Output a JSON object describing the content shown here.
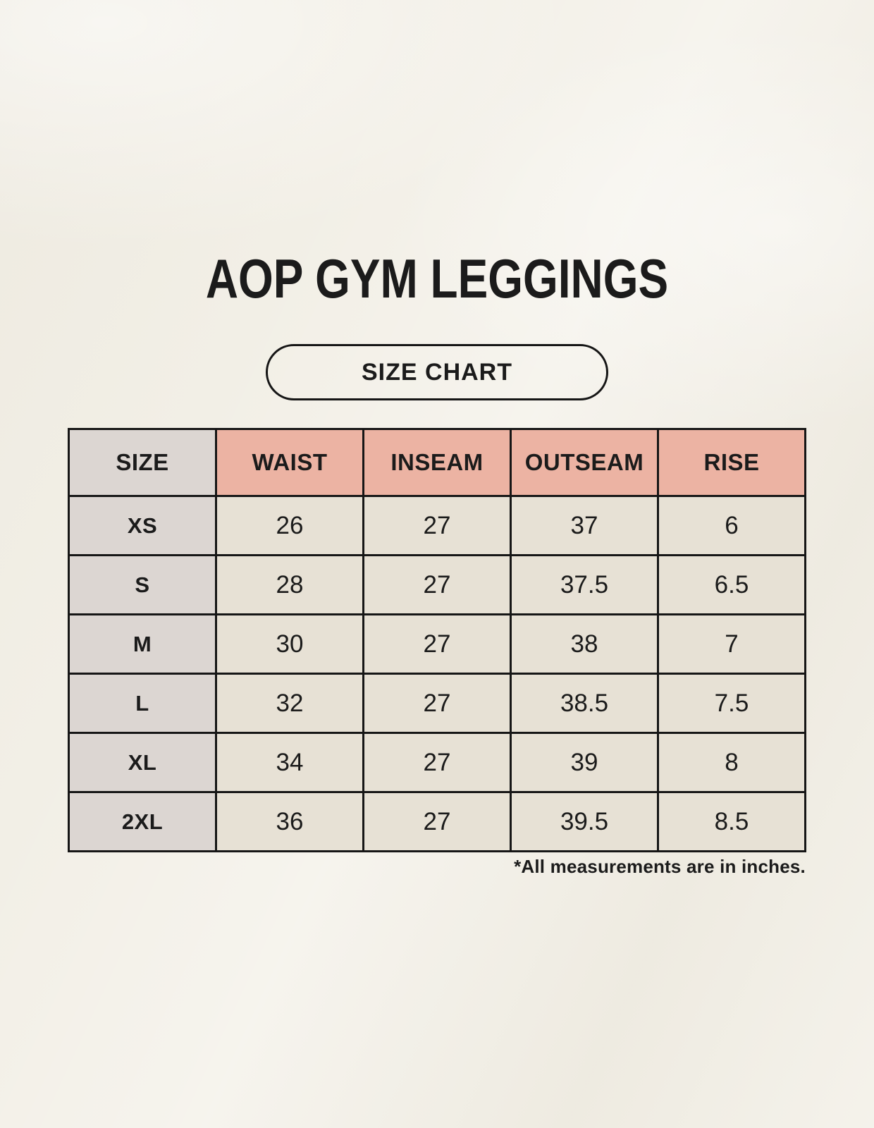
{
  "header": {
    "title": "AOP GYM LEGGINGS",
    "badge_label": "SIZE CHART"
  },
  "table": {
    "columns": [
      "SIZE",
      "WAIST",
      "INSEAM",
      "OUTSEAM",
      "RISE"
    ],
    "rows": [
      {
        "size": "XS",
        "values": [
          "26",
          "27",
          "37",
          "6"
        ]
      },
      {
        "size": "S",
        "values": [
          "28",
          "27",
          "37.5",
          "6.5"
        ]
      },
      {
        "size": "M",
        "values": [
          "30",
          "27",
          "38",
          "7"
        ]
      },
      {
        "size": "L",
        "values": [
          "32",
          "27",
          "38.5",
          "7.5"
        ]
      },
      {
        "size": "XL",
        "values": [
          "34",
          "27",
          "39",
          "8"
        ]
      },
      {
        "size": "2XL",
        "values": [
          "36",
          "27",
          "39.5",
          "8.5"
        ]
      }
    ],
    "footnote": "*All measurements are in inches."
  },
  "colors": {
    "background": "#f2efe6",
    "header_pink": "#ecb3a3",
    "size_gray": "#dcd6d2",
    "cell_beige": "#e7e1d5",
    "border": "#161616",
    "text": "#1b1b1b"
  }
}
